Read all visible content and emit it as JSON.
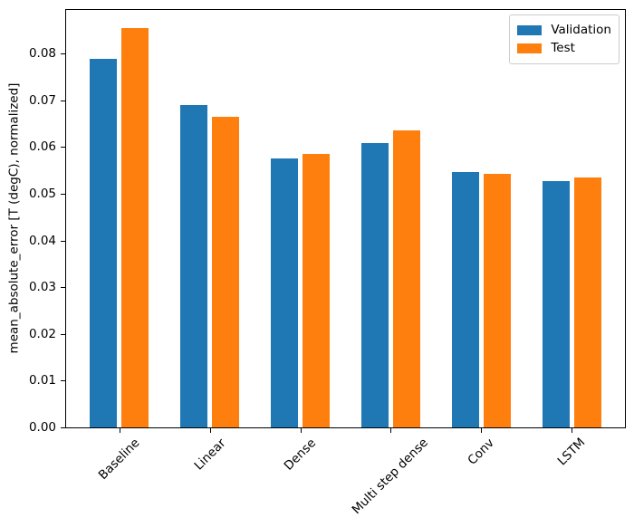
{
  "chart_data": {
    "type": "bar",
    "title": "",
    "xlabel": "",
    "ylabel": "mean_absolute_error [T (degC), normalized]",
    "categories": [
      "Baseline",
      "Linear",
      "Dense",
      "Multi step dense",
      "Conv",
      "LSTM"
    ],
    "series": [
      {
        "name": "Validation",
        "color": "#1f77b4",
        "values": [
          0.0789,
          0.0689,
          0.0575,
          0.0609,
          0.0547,
          0.0527
        ]
      },
      {
        "name": "Test",
        "color": "#ff7f0e",
        "values": [
          0.0855,
          0.0664,
          0.0585,
          0.0636,
          0.0542,
          0.0535
        ]
      }
    ],
    "ylim": [
      0,
      0.0895
    ],
    "xlim": [
      -0.6,
      5.6
    ],
    "ytick_values": [
      0,
      0.01,
      0.02,
      0.03,
      0.04,
      0.05,
      0.06,
      0.07,
      0.08
    ],
    "yticklabels": [
      "0.00",
      "0.01",
      "0.02",
      "0.03",
      "0.04",
      "0.05",
      "0.06",
      "0.07",
      "0.08"
    ],
    "xtick_rotation_deg": 45,
    "grid": false,
    "legend": {
      "position": "upper right",
      "entries": [
        "Validation",
        "Test"
      ]
    }
  }
}
